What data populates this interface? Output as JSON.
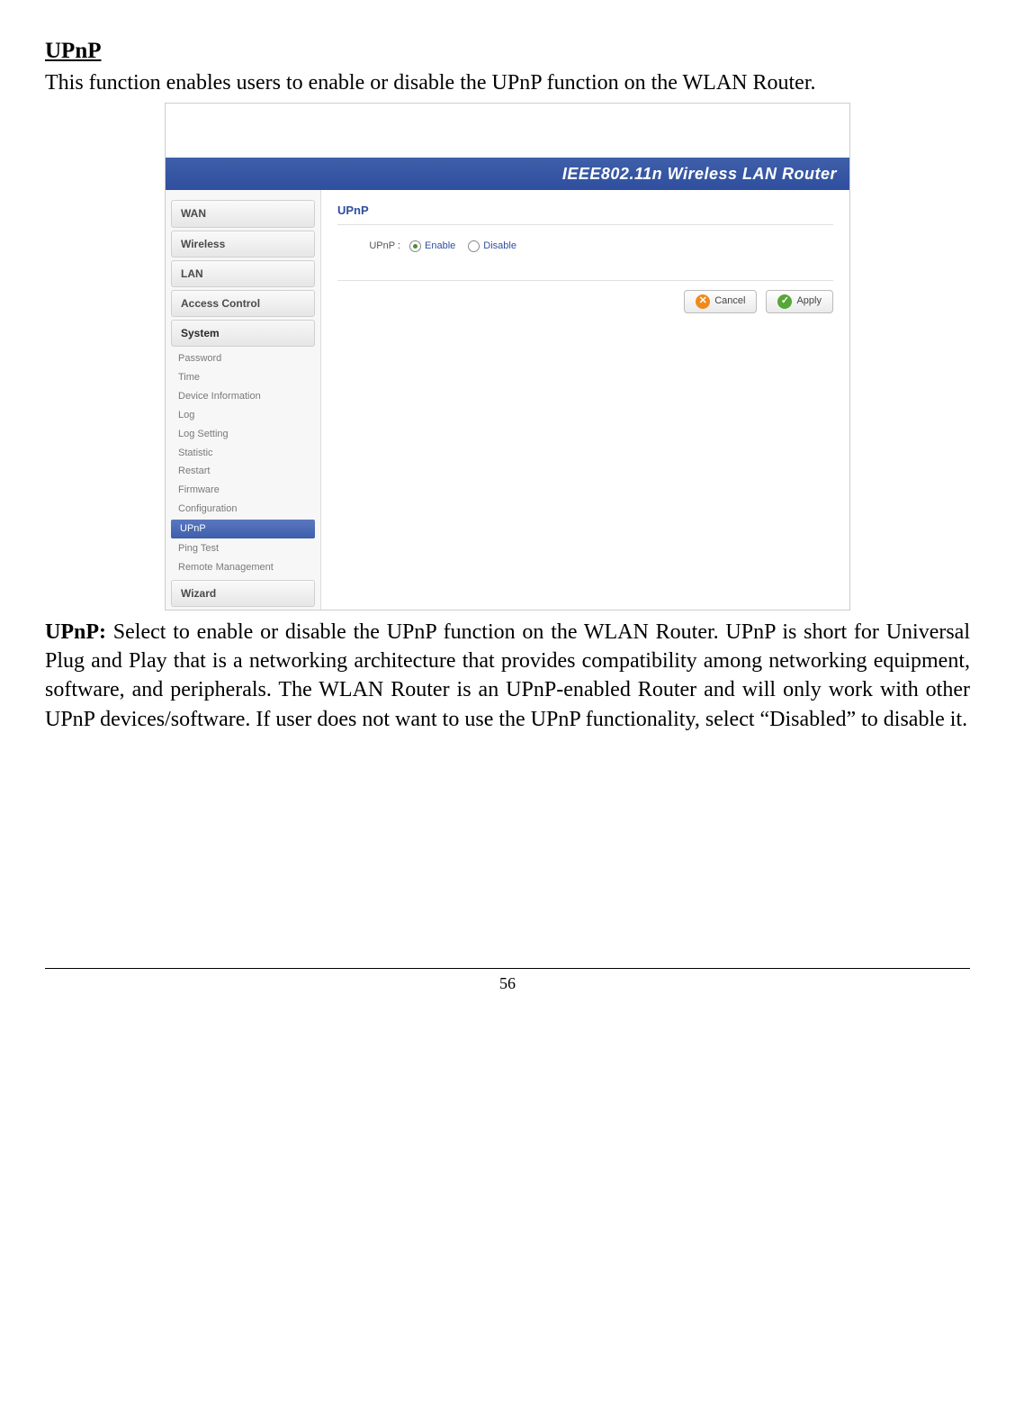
{
  "doc": {
    "heading": "UPnP",
    "intro": "This function enables users to enable or disable the UPnP function on the WLAN Router.",
    "para_lead": "UPnP:",
    "para_body": " Select to enable or disable the UPnP function on the WLAN Router. UPnP is short for Universal Plug and Play that is a networking architecture that provides compatibility among networking equipment, software, and peripherals. The WLAN Router is an UPnP-enabled Router and will only work with other UPnP devices/software. If user does not want to use the UPnP functionality, select “Disabled” to disable it.",
    "page_number": "56"
  },
  "router": {
    "banner": "IEEE802.11n  Wireless LAN Router",
    "panel_title": "UPnP",
    "form": {
      "label": "UPnP :",
      "enable": "Enable",
      "disable": "Disable",
      "selected": "enable"
    },
    "buttons": {
      "cancel": "Cancel",
      "apply": "Apply"
    },
    "colors": {
      "banner_bg": "#3f5faa",
      "accent": "#2f4f9f",
      "cancel_icon": "#f08a1d",
      "apply_icon": "#57a639"
    }
  },
  "nav": {
    "main": [
      {
        "label": "WAN",
        "active": false
      },
      {
        "label": "Wireless",
        "active": false
      },
      {
        "label": "LAN",
        "active": false
      },
      {
        "label": "Access Control",
        "active": false
      },
      {
        "label": "System",
        "active": true
      }
    ],
    "sub": [
      {
        "label": "Password",
        "active": false
      },
      {
        "label": "Time",
        "active": false
      },
      {
        "label": "Device Information",
        "active": false
      },
      {
        "label": "Log",
        "active": false
      },
      {
        "label": "Log Setting",
        "active": false
      },
      {
        "label": "Statistic",
        "active": false
      },
      {
        "label": "Restart",
        "active": false
      },
      {
        "label": "Firmware",
        "active": false
      },
      {
        "label": "Configuration",
        "active": false
      },
      {
        "label": "UPnP",
        "active": true
      },
      {
        "label": "Ping Test",
        "active": false
      },
      {
        "label": "Remote Management",
        "active": false
      }
    ],
    "wizard": "Wizard"
  }
}
